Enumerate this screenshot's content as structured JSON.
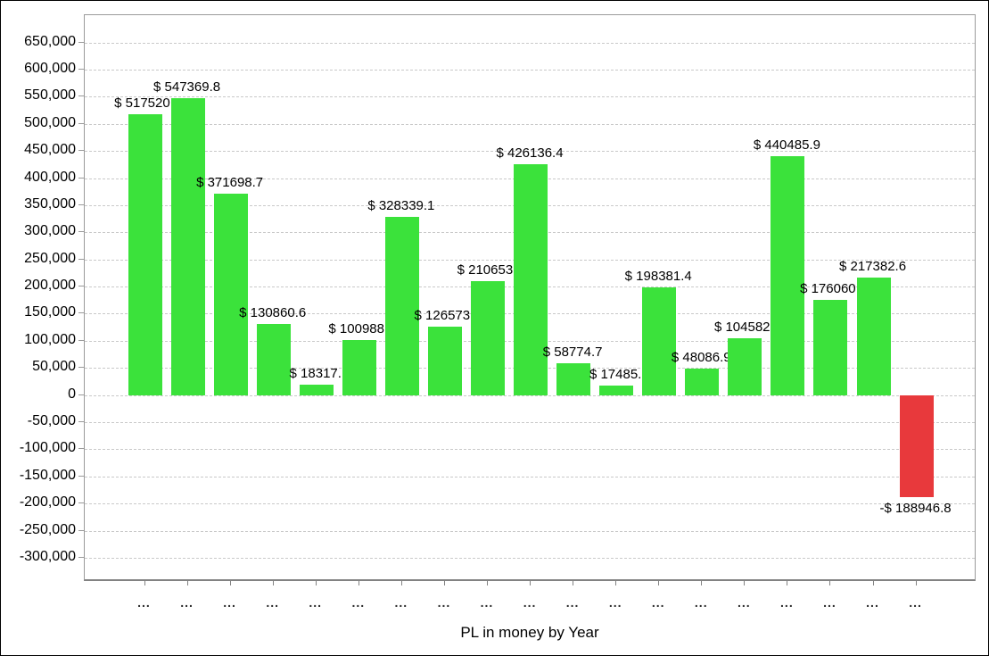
{
  "title": "PL in money by Year",
  "colors": {
    "positive_bar": "#3BE23B",
    "negative_bar": "#E8393C",
    "gridline": "#C9C9C9",
    "plot_border": "#9A9A9A",
    "text": "#000000"
  },
  "y_axis": {
    "tick_labels": [
      "650,000",
      "600,000",
      "550,000",
      "500,000",
      "450,000",
      "400,000",
      "350,000",
      "300,000",
      "250,000",
      "200,000",
      "150,000",
      "100,000",
      "50,000",
      "0",
      "-50,000",
      "-100,000",
      "-150,000",
      "-200,000",
      "-250,000",
      "-300,000"
    ],
    "tick_values": [
      650000,
      600000,
      550000,
      500000,
      450000,
      400000,
      350000,
      300000,
      250000,
      200000,
      150000,
      100000,
      50000,
      0,
      -50000,
      -100000,
      -150000,
      -200000,
      -250000,
      -300000
    ]
  },
  "x_axis": {
    "tick_labels": [
      "...",
      "...",
      "...",
      "...",
      "...",
      "...",
      "...",
      "...",
      "...",
      "...",
      "...",
      "...",
      "...",
      "...",
      "...",
      "...",
      "...",
      "...",
      "..."
    ]
  },
  "chart_data": {
    "type": "bar",
    "title": "PL in money by Year",
    "xlabel": "PL in money by Year",
    "ylabel": "",
    "ylim": [
      -300000,
      650000
    ],
    "grid": "horizontal-dashed",
    "legend": "none",
    "categories": [
      "...",
      "...",
      "...",
      "...",
      "...",
      "...",
      "...",
      "...",
      "...",
      "...",
      "...",
      "...",
      "...",
      "...",
      "...",
      "...",
      "...",
      "...",
      "..."
    ],
    "values": [
      517520,
      547369.8,
      371698.7,
      130860.6,
      18317,
      100988,
      328339.1,
      126573,
      210653,
      426136.4,
      58774.7,
      17485,
      198381.4,
      48086.9,
      104582,
      440485.9,
      176060,
      217382.6,
      -188946.8
    ],
    "bars": [
      {
        "label": "$ 517520.",
        "value": 517520
      },
      {
        "label": "$ 547369.8",
        "value": 547369.8
      },
      {
        "label": "$ 371698.7",
        "value": 371698.7
      },
      {
        "label": "$ 130860.6",
        "value": 130860.6
      },
      {
        "label": "$ 18317.",
        "value": 18317
      },
      {
        "label": "$ 100988.",
        "value": 100988
      },
      {
        "label": "$ 328339.1",
        "value": 328339.1
      },
      {
        "label": "$ 126573.",
        "value": 126573
      },
      {
        "label": "$ 210653.",
        "value": 210653
      },
      {
        "label": "$ 426136.4",
        "value": 426136.4
      },
      {
        "label": "$ 58774.7",
        "value": 58774.7
      },
      {
        "label": "$ 17485.",
        "value": 17485
      },
      {
        "label": "$ 198381.4",
        "value": 198381.4
      },
      {
        "label": "$ 48086.9",
        "value": 48086.9
      },
      {
        "label": "$ 104582.",
        "value": 104582
      },
      {
        "label": "$ 440485.9",
        "value": 440485.9
      },
      {
        "label": "$ 176060.",
        "value": 176060
      },
      {
        "label": "$ 217382.6",
        "value": 217382.6
      },
      {
        "label": "-$ 188946.8",
        "value": -188946.8
      }
    ]
  }
}
